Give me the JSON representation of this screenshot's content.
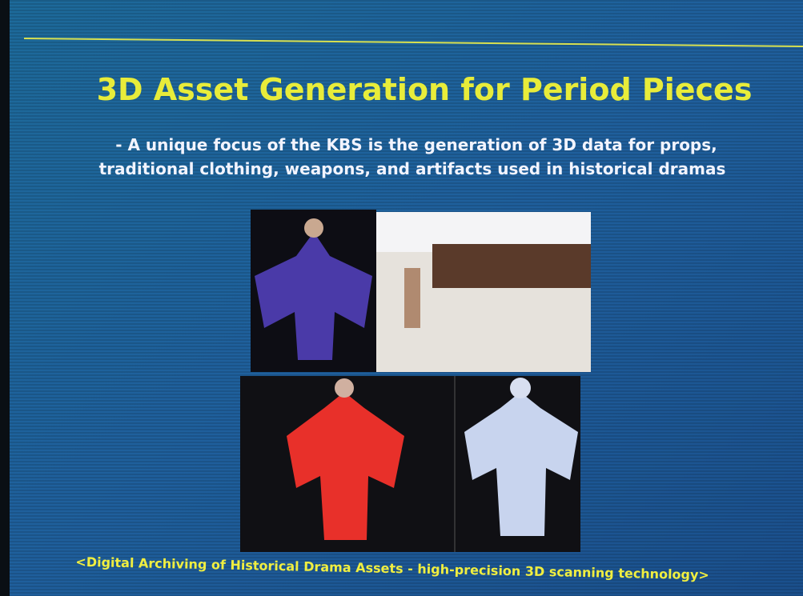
{
  "slide": {
    "title": "3D Asset Generation for Period Pieces",
    "body": [
      "- A unique focus of the KBS is the generation of 3D data for props,",
      "traditional clothing, weapons, and artifacts used in historical dramas"
    ],
    "caption": "<Digital Archiving of Historical Drama Assets - high-precision 3D scanning technology>"
  }
}
